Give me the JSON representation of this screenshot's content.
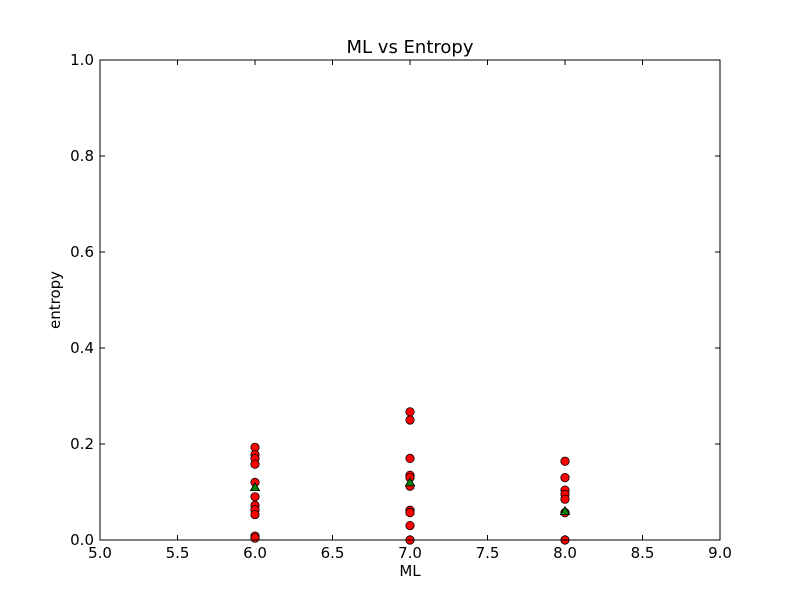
{
  "chart_data": {
    "type": "scatter",
    "title": "ML vs Entropy",
    "xlabel": "ML",
    "ylabel": "entropy",
    "xlim": [
      5.0,
      9.0
    ],
    "ylim": [
      0.0,
      1.0
    ],
    "xticks": [
      "5.0",
      "5.5",
      "6.0",
      "6.5",
      "7.0",
      "7.5",
      "8.0",
      "8.5",
      "9.0"
    ],
    "yticks": [
      "0.0",
      "0.2",
      "0.4",
      "0.6",
      "0.8",
      "1.0"
    ],
    "grid": false,
    "series": [
      {
        "marker": "circle",
        "color": "#ff0000",
        "points": [
          [
            6.0,
            0.193
          ],
          [
            6.0,
            0.178
          ],
          [
            6.0,
            0.17
          ],
          [
            6.0,
            0.158
          ],
          [
            6.0,
            0.12
          ],
          [
            6.0,
            0.09
          ],
          [
            6.0,
            0.072
          ],
          [
            6.0,
            0.063
          ],
          [
            6.0,
            0.053
          ],
          [
            6.0,
            0.008
          ],
          [
            6.0,
            0.004
          ],
          [
            7.0,
            0.267
          ],
          [
            7.0,
            0.25
          ],
          [
            7.0,
            0.17
          ],
          [
            7.0,
            0.135
          ],
          [
            7.0,
            0.13
          ],
          [
            7.0,
            0.112
          ],
          [
            7.0,
            0.062
          ],
          [
            7.0,
            0.057
          ],
          [
            7.0,
            0.03
          ],
          [
            7.0,
            0.0
          ],
          [
            8.0,
            0.164
          ],
          [
            8.0,
            0.13
          ],
          [
            8.0,
            0.104
          ],
          [
            8.0,
            0.095
          ],
          [
            8.0,
            0.085
          ],
          [
            8.0,
            0.057
          ],
          [
            8.0,
            0.0
          ]
        ]
      },
      {
        "marker": "triangle",
        "color": "#008000",
        "points": [
          [
            6.0,
            0.11
          ],
          [
            7.0,
            0.12
          ],
          [
            8.0,
            0.06
          ]
        ]
      }
    ]
  }
}
